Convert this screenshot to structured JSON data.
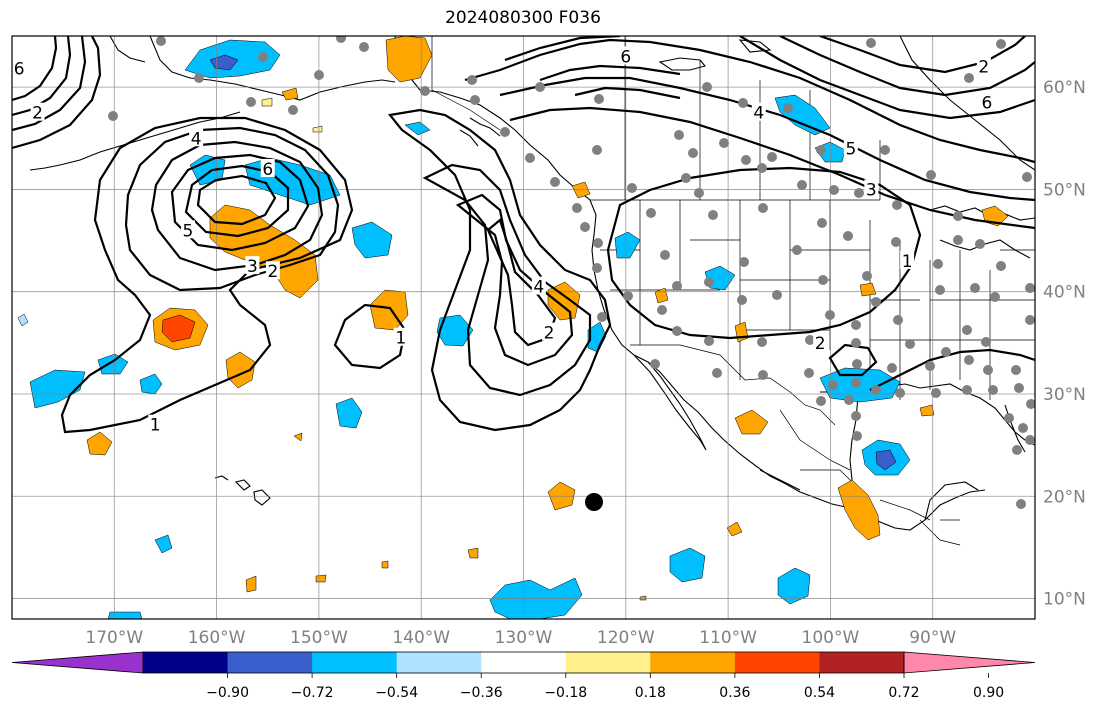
{
  "title": "2024080300 F036",
  "map": {
    "lon_range": [
      -180,
      -80
    ],
    "lat_range": [
      8,
      65
    ],
    "grid_lons": [
      -170,
      -160,
      -150,
      -140,
      -130,
      -120,
      -110,
      -100,
      -90
    ],
    "grid_lats": [
      10,
      20,
      30,
      40,
      50,
      60
    ],
    "lon_labels": [
      "170°W",
      "160°W",
      "150°W",
      "140°W",
      "130°W",
      "120°W",
      "110°W",
      "100°W",
      "90°W"
    ],
    "lat_labels": [
      "10°N",
      "20°N",
      "30°N",
      "40°N",
      "50°N",
      "60°N"
    ],
    "grid": true
  },
  "colorbar": {
    "ticks": [
      "−0.90",
      "−0.72",
      "−0.54",
      "−0.36",
      "−0.18",
      "0.18",
      "0.36",
      "0.54",
      "0.72",
      "0.90"
    ],
    "colors": [
      "#9932cc",
      "#00008b",
      "#3a5fcd",
      "#00bfff",
      "#b0e2ff",
      "#ffffff",
      "#fff08c",
      "#ffa500",
      "#ff4500",
      "#b22222",
      "#ff88aa"
    ],
    "extend": "both"
  },
  "contours": {
    "labels": [
      {
        "text": "6",
        "lon": -179.3,
        "lat": 61.8
      },
      {
        "text": "2",
        "lon": -177.5,
        "lat": 57.5
      },
      {
        "text": "4",
        "lon": -162,
        "lat": 55
      },
      {
        "text": "6",
        "lon": -155,
        "lat": 52
      },
      {
        "text": "5",
        "lon": -162.8,
        "lat": 46
      },
      {
        "text": "3",
        "lon": -156.5,
        "lat": 42.5
      },
      {
        "text": "2",
        "lon": -154.5,
        "lat": 42
      },
      {
        "text": "1",
        "lon": -142,
        "lat": 35.5
      },
      {
        "text": "1",
        "lon": -166,
        "lat": 27
      },
      {
        "text": "6",
        "lon": -120,
        "lat": 63
      },
      {
        "text": "4",
        "lon": -128.5,
        "lat": 40.5
      },
      {
        "text": "2",
        "lon": -127.5,
        "lat": 36
      },
      {
        "text": "2",
        "lon": -101,
        "lat": 35
      },
      {
        "text": "4",
        "lon": -107,
        "lat": 57.5
      },
      {
        "text": "5",
        "lon": -98,
        "lat": 54
      },
      {
        "text": "3",
        "lon": -96,
        "lat": 50
      },
      {
        "text": "1",
        "lon": -92.5,
        "lat": 43
      },
      {
        "text": "6",
        "lon": -84.7,
        "lat": 58.5
      },
      {
        "text": "2",
        "lon": -85,
        "lat": 62
      }
    ]
  }
}
